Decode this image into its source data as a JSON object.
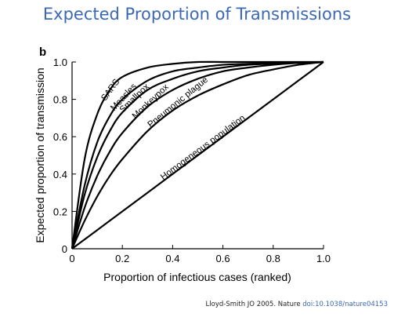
{
  "slide": {
    "title": "Expected Proportion of Transmissions",
    "citation_text": "Lloyd-Smith JO 2005. Nature ",
    "citation_doi": "doi:10.1038/nature04153"
  },
  "colors": {
    "title": "#3b68b5",
    "ink": "#000000",
    "doi": "#3b68b5"
  },
  "chart_data": {
    "type": "line",
    "panel_label": "b",
    "xlabel": "Proportion of infectious cases (ranked)",
    "ylabel": "Expected proportion of transmission",
    "xlim": [
      0,
      1
    ],
    "ylim": [
      0,
      1
    ],
    "xticks": [
      "0",
      "0.2",
      "0.4",
      "0.6",
      "0.8",
      "1.0"
    ],
    "yticks": [
      "0",
      "0.2",
      "0.4",
      "0.6",
      "0.8",
      "1.0"
    ],
    "grid": false,
    "x": [
      0,
      0.05,
      0.1,
      0.15,
      0.2,
      0.3,
      0.4,
      0.5,
      0.6,
      0.7,
      0.8,
      0.9,
      1.0
    ],
    "series": [
      {
        "name": "SARS",
        "values": [
          0,
          0.48,
          0.72,
          0.85,
          0.92,
          0.97,
          0.99,
          1.0,
          1.0,
          1.0,
          1.0,
          1.0,
          1.0
        ]
      },
      {
        "name": "Measles",
        "values": [
          0,
          0.34,
          0.57,
          0.71,
          0.8,
          0.9,
          0.95,
          0.97,
          0.985,
          0.99,
          0.995,
          0.998,
          1.0
        ]
      },
      {
        "name": "Smallpox",
        "values": [
          0,
          0.29,
          0.49,
          0.63,
          0.73,
          0.85,
          0.91,
          0.95,
          0.97,
          0.985,
          0.99,
          0.995,
          1.0
        ]
      },
      {
        "name": "Monkeypox",
        "values": [
          0,
          0.22,
          0.39,
          0.52,
          0.62,
          0.76,
          0.85,
          0.91,
          0.95,
          0.97,
          0.985,
          0.995,
          1.0
        ]
      },
      {
        "name": "Pneumonic plague",
        "values": [
          0,
          0.15,
          0.28,
          0.39,
          0.48,
          0.63,
          0.74,
          0.82,
          0.88,
          0.93,
          0.96,
          0.985,
          1.0
        ]
      },
      {
        "name": "Homogeneous population",
        "values": [
          0,
          0.05,
          0.1,
          0.15,
          0.2,
          0.3,
          0.4,
          0.5,
          0.6,
          0.7,
          0.8,
          0.9,
          1.0
        ]
      }
    ]
  }
}
